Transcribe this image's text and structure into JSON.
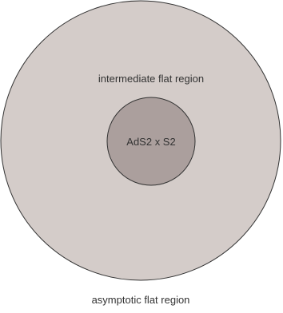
{
  "diagram": {
    "outer_region": {
      "label": "intermediate flat region",
      "fill": "#d4ccc9",
      "stroke": "#333333"
    },
    "inner_region": {
      "label": "AdS2 x S2",
      "fill": "#ab9f9d",
      "stroke": "#333333"
    },
    "exterior_label": "asymptotic flat region"
  }
}
